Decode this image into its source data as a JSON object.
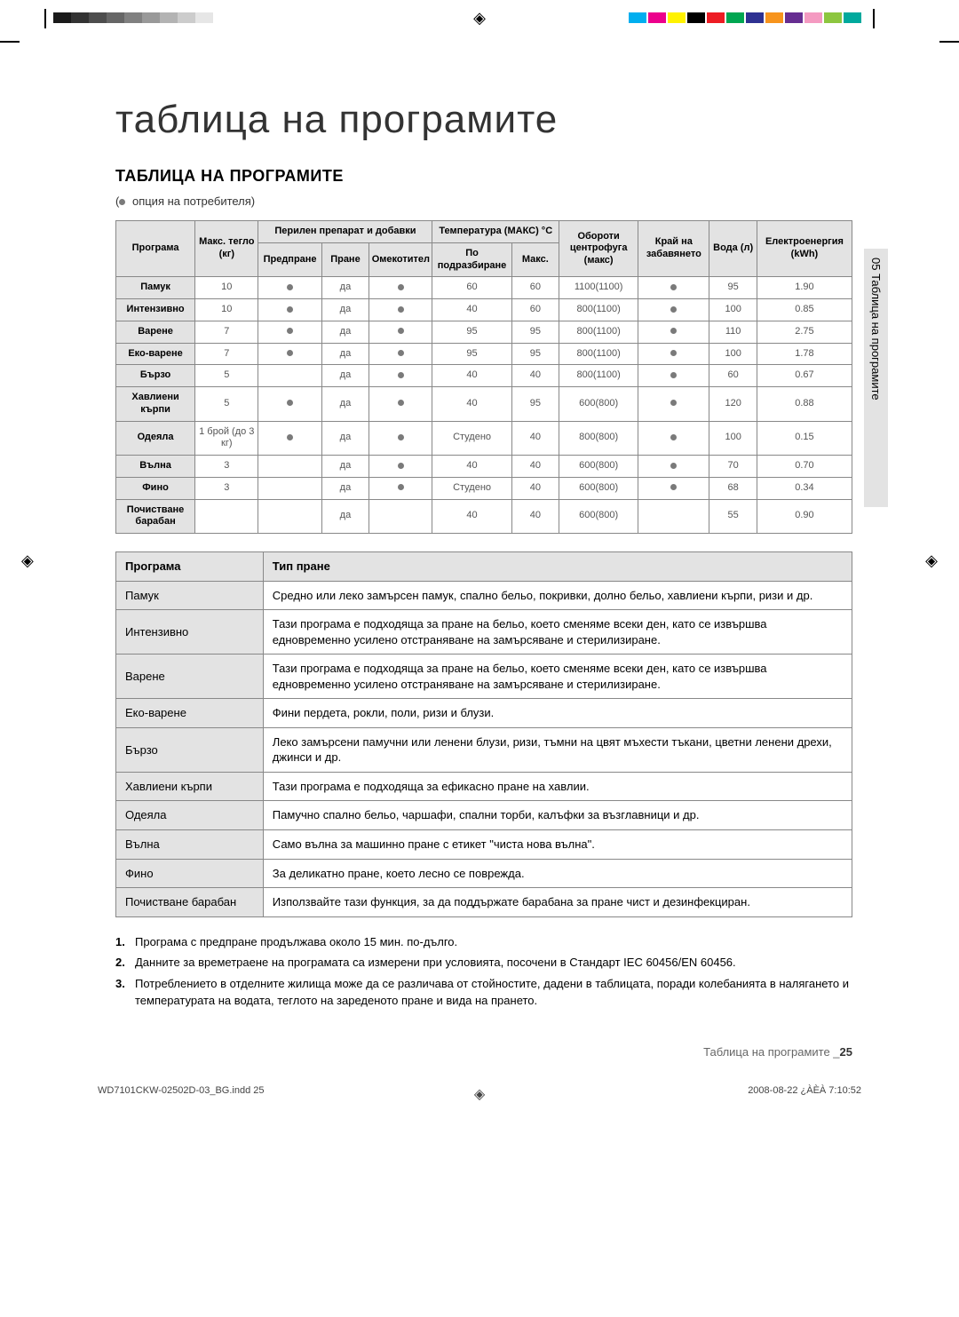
{
  "decor": {
    "greys": [
      "#1a1a1a",
      "#333",
      "#4d4d4d",
      "#666",
      "#808080",
      "#999",
      "#b3b3b3",
      "#ccc",
      "#e6e6e6",
      "#fff"
    ],
    "colors": [
      "#00aeef",
      "#ec008c",
      "#fff200",
      "#000000",
      "#ed1c24",
      "#00a651",
      "#2e3192",
      "#f7941d",
      "#662d91",
      "#f49ac1",
      "#8dc63f",
      "#00a99d"
    ],
    "reg": "◈",
    "footer_left": "WD7101CKW-02502D-03_BG.indd   25",
    "footer_right": "2008-08-22   ¿ÀÈÀ 7:10:52"
  },
  "titles": {
    "main": "таблица на програмите",
    "sub": "ТАБЛИЦА НА ПРОГРАМИТЕ",
    "side_tab": "05  Таблица на програмите",
    "user_option": "опция на потребителя)"
  },
  "table1": {
    "headers": {
      "program": "Програма",
      "max_weight": "Макс. тегло (кг)",
      "detergent_group": "Перилен препарат и добавки",
      "prewash": "Предпране",
      "wash": "Пране",
      "softener": "Омекотител",
      "temp_group": "Температура (МАКС) °C",
      "default": "По подразбиране",
      "max": "Макс.",
      "spin": "Обороти центрофуга (макс)",
      "delay": "Край на забавянето",
      "water": "Вода (л)",
      "energy": "Електроенергия (kWh)"
    },
    "rows": [
      {
        "name": "Памук",
        "weight": "10",
        "pre": "dot",
        "wash": "да",
        "soft": "dot",
        "def": "60",
        "max": "60",
        "spin": "1100(1100)",
        "delay": "dot",
        "water": "95",
        "energy": "1.90"
      },
      {
        "name": "Интензивно",
        "weight": "10",
        "pre": "dot",
        "wash": "да",
        "soft": "dot",
        "def": "40",
        "max": "60",
        "spin": "800(1100)",
        "delay": "dot",
        "water": "100",
        "energy": "0.85"
      },
      {
        "name": "Варене",
        "weight": "7",
        "pre": "dot",
        "wash": "да",
        "soft": "dot",
        "def": "95",
        "max": "95",
        "spin": "800(1100)",
        "delay": "dot",
        "water": "110",
        "energy": "2.75"
      },
      {
        "name": "Еко-варене",
        "weight": "7",
        "pre": "dot",
        "wash": "да",
        "soft": "dot",
        "def": "95",
        "max": "95",
        "spin": "800(1100)",
        "delay": "dot",
        "water": "100",
        "energy": "1.78"
      },
      {
        "name": "Бързо",
        "weight": "5",
        "pre": "",
        "wash": "да",
        "soft": "dot",
        "def": "40",
        "max": "40",
        "spin": "800(1100)",
        "delay": "dot",
        "water": "60",
        "energy": "0.67"
      },
      {
        "name": "Хавлиени кърпи",
        "weight": "5",
        "pre": "dot",
        "wash": "да",
        "soft": "dot",
        "def": "40",
        "max": "95",
        "spin": "600(800)",
        "delay": "dot",
        "water": "120",
        "energy": "0.88"
      },
      {
        "name": "Одеяла",
        "weight": "1 брой (до 3 кг)",
        "pre": "dot",
        "wash": "да",
        "soft": "dot",
        "def": "Студено",
        "max": "40",
        "spin": "800(800)",
        "delay": "dot",
        "water": "100",
        "energy": "0.15"
      },
      {
        "name": "Вълна",
        "weight": "3",
        "pre": "",
        "wash": "да",
        "soft": "dot",
        "def": "40",
        "max": "40",
        "spin": "600(800)",
        "delay": "dot",
        "water": "70",
        "energy": "0.70"
      },
      {
        "name": "Фино",
        "weight": "3",
        "pre": "",
        "wash": "да",
        "soft": "dot",
        "def": "Студено",
        "max": "40",
        "spin": "600(800)",
        "delay": "dot",
        "water": "68",
        "energy": "0.34"
      },
      {
        "name": "Почистване барабан",
        "weight": "",
        "pre": "",
        "wash": "да",
        "soft": "",
        "def": "40",
        "max": "40",
        "spin": "600(800)",
        "delay": "",
        "water": "55",
        "energy": "0.90"
      }
    ]
  },
  "table2": {
    "headers": {
      "program": "Програма",
      "type": "Тип пране"
    },
    "rows": [
      {
        "name": "Памук",
        "desc": "Средно или леко замърсен памук, спално бельо, покривки, долно бельо, хавлиени кърпи, ризи и др."
      },
      {
        "name": "Интензивно",
        "desc": "Тази програма е подходяща за пране на бельо, което сменяме всеки ден, като се извършва едновременно усилено отстраняване на замърсяване и стерилизиране."
      },
      {
        "name": "Варене",
        "desc": "Тази програма е подходяща за пране на бельо, което сменяме всеки ден, като се извършва едновременно усилено отстраняване на замърсяване и стерилизиране."
      },
      {
        "name": "Еко-варене",
        "desc": "Фини пердета, рокли, поли, ризи и блузи."
      },
      {
        "name": "Бързо",
        "desc": "Леко замърсени памучни или ленени блузи, ризи, тъмни на цвят мъхести тъкани, цветни ленени дрехи, джинси и др."
      },
      {
        "name": "Хавлиени кърпи",
        "desc": "Тази програма е подходяща за ефикасно пране на хавлии."
      },
      {
        "name": "Одеяла",
        "desc": "Памучно спално бельо, чаршафи, спални торби, калъфки за възглавници и др."
      },
      {
        "name": "Вълна",
        "desc": "Само вълна за машинно пране с етикет \"чиста нова вълна\"."
      },
      {
        "name": "Фино",
        "desc": "За деликатно пране, което лесно се поврежда."
      },
      {
        "name": "Почистване барабан",
        "desc": "Използвайте тази функция, за да поддържате барабана за пране чист и дезинфекциран."
      }
    ]
  },
  "notes": [
    "Програма с предпране продължава около 15 мин. по-дълго.",
    "Данните за времетраене на програмата са измерени при условията, посочени в Стандарт IEC 60456/EN 60456.",
    "Потреблението в отделните жилища може да се различава от стойностите, дадени в таблицата, поради колебанията в налягането и температурата на водата, теглото на зареденото пране и вида на прането."
  ],
  "page_footer": {
    "label": "Таблица на програмите _",
    "num": "25"
  }
}
